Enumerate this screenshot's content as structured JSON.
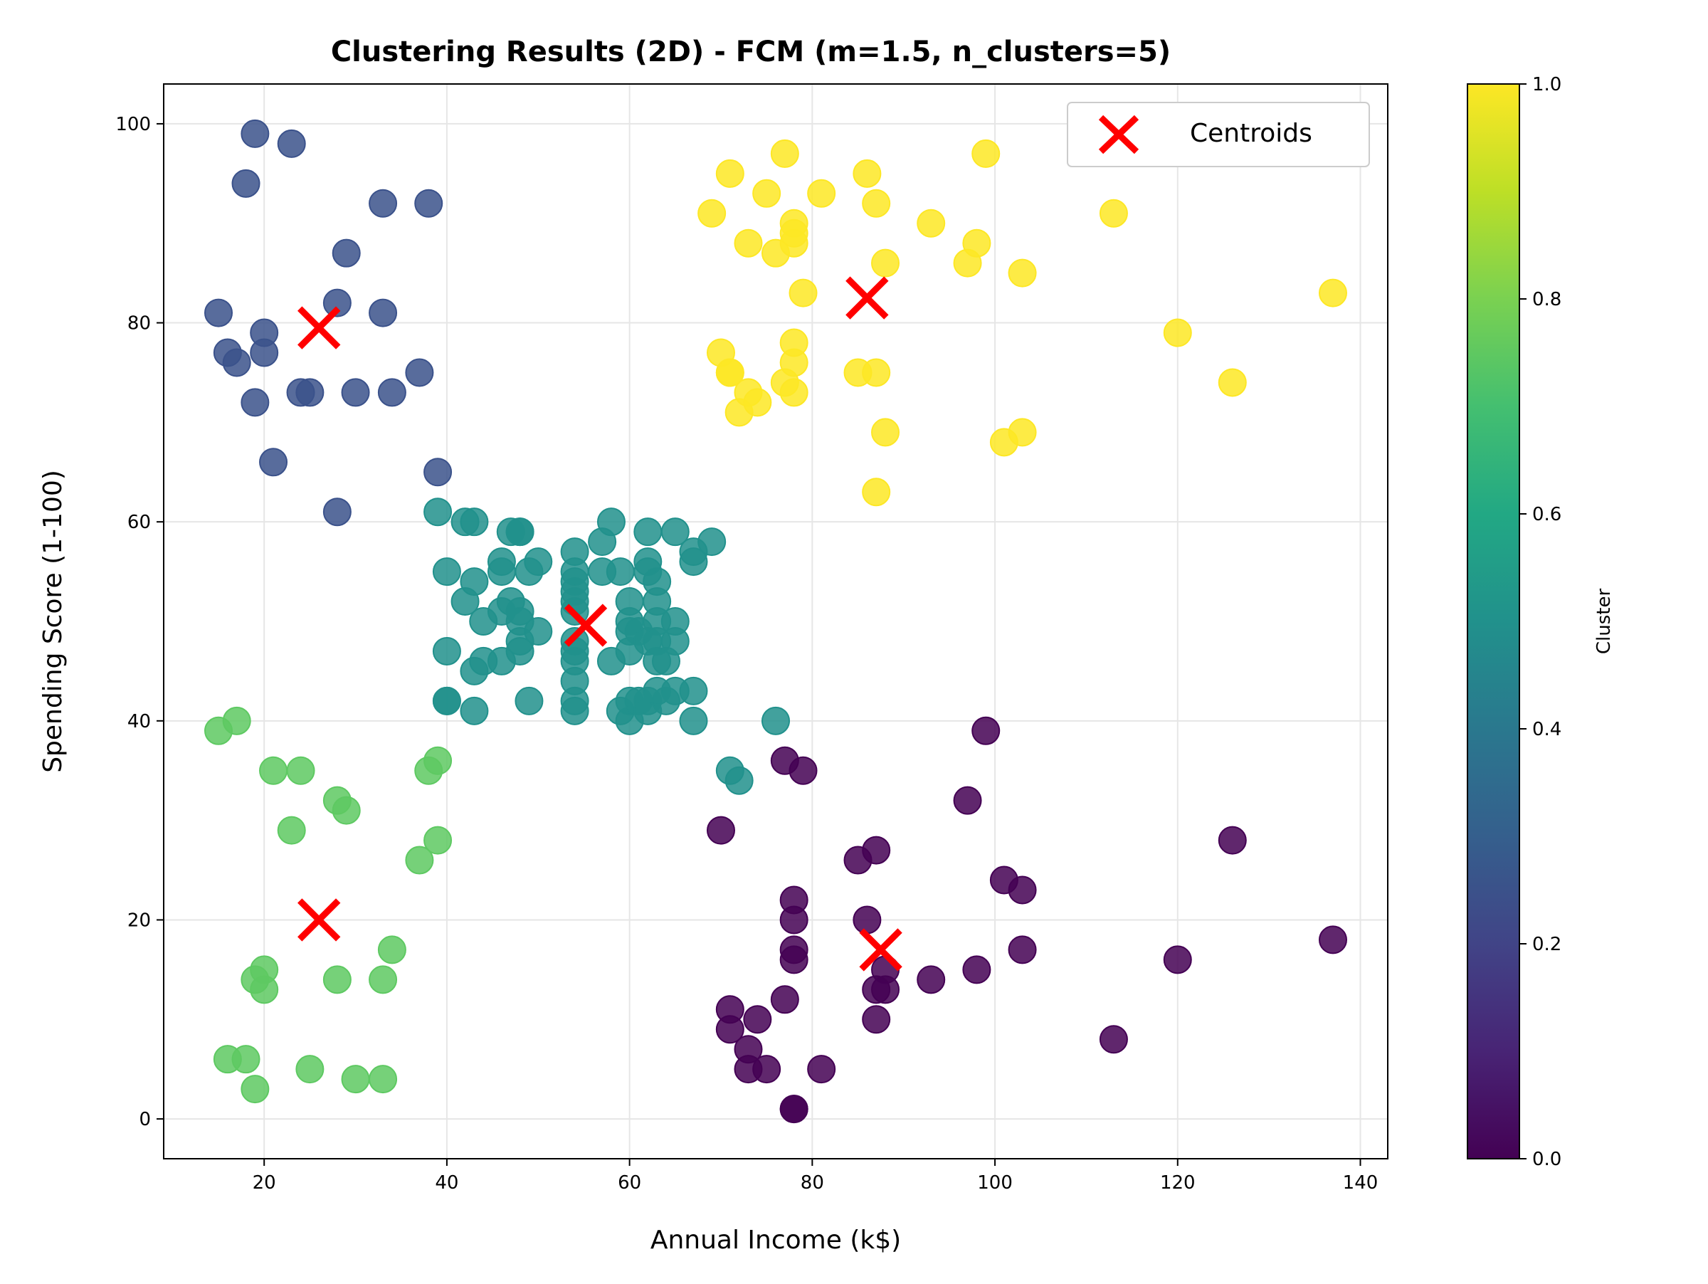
{
  "chart_data": {
    "type": "scatter",
    "title": "Clustering Results (2D) - FCM (m=1.5, n_clusters=5)",
    "xlabel": "Annual Income (k$)",
    "ylabel": "Spending Score (1-100)",
    "xlim": [
      9,
      143
    ],
    "ylim": [
      -4,
      104
    ],
    "xticks": [
      20,
      40,
      60,
      80,
      100,
      120,
      140
    ],
    "yticks": [
      0,
      20,
      40,
      60,
      80,
      100
    ],
    "grid": true,
    "legend": {
      "position": "top-right",
      "entries": [
        "Centroids"
      ]
    },
    "colorbar": {
      "label": "Cluster",
      "range": [
        0,
        1
      ],
      "ticks": [
        "0.0",
        "0.2",
        "0.4",
        "0.6",
        "0.8",
        "1.0"
      ],
      "colormap": "viridis"
    },
    "centroid_color": "#ff0000",
    "series": [
      {
        "cluster_value": 0.2,
        "color": "#3b528b",
        "points": [
          [
            15,
            81
          ],
          [
            16,
            77
          ],
          [
            17,
            76
          ],
          [
            18,
            94
          ],
          [
            19,
            72
          ],
          [
            19,
            99
          ],
          [
            20,
            77
          ],
          [
            20,
            79
          ],
          [
            21,
            66
          ],
          [
            23,
            98
          ],
          [
            24,
            73
          ],
          [
            25,
            73
          ],
          [
            28,
            61
          ],
          [
            28,
            82
          ],
          [
            29,
            87
          ],
          [
            30,
            73
          ],
          [
            33,
            81
          ],
          [
            33,
            92
          ],
          [
            34,
            73
          ],
          [
            37,
            75
          ],
          [
            38,
            92
          ],
          [
            39,
            65
          ]
        ]
      },
      {
        "cluster_value": 0.8,
        "color": "#5ec962",
        "points": [
          [
            15,
            39
          ],
          [
            16,
            6
          ],
          [
            17,
            40
          ],
          [
            18,
            6
          ],
          [
            19,
            3
          ],
          [
            19,
            14
          ],
          [
            20,
            13
          ],
          [
            20,
            15
          ],
          [
            21,
            35
          ],
          [
            23,
            29
          ],
          [
            24,
            35
          ],
          [
            25,
            5
          ],
          [
            28,
            14
          ],
          [
            28,
            32
          ],
          [
            29,
            31
          ],
          [
            30,
            4
          ],
          [
            33,
            4
          ],
          [
            33,
            14
          ],
          [
            34,
            17
          ],
          [
            37,
            26
          ],
          [
            38,
            35
          ],
          [
            39,
            36
          ],
          [
            39,
            28
          ]
        ]
      },
      {
        "cluster_value": 0.5,
        "color": "#21918c",
        "points": [
          [
            39,
            61
          ],
          [
            40,
            55
          ],
          [
            40,
            47
          ],
          [
            40,
            42
          ],
          [
            40,
            42
          ],
          [
            42,
            52
          ],
          [
            42,
            60
          ],
          [
            43,
            54
          ],
          [
            43,
            60
          ],
          [
            43,
            45
          ],
          [
            43,
            41
          ],
          [
            44,
            50
          ],
          [
            44,
            46
          ],
          [
            46,
            51
          ],
          [
            46,
            46
          ],
          [
            46,
            56
          ],
          [
            46,
            55
          ],
          [
            47,
            52
          ],
          [
            47,
            59
          ],
          [
            48,
            51
          ],
          [
            48,
            59
          ],
          [
            48,
            50
          ],
          [
            48,
            48
          ],
          [
            48,
            59
          ],
          [
            48,
            47
          ],
          [
            49,
            55
          ],
          [
            49,
            42
          ],
          [
            50,
            49
          ],
          [
            50,
            56
          ],
          [
            54,
            47
          ],
          [
            54,
            54
          ],
          [
            54,
            53
          ],
          [
            54,
            48
          ],
          [
            54,
            52
          ],
          [
            54,
            42
          ],
          [
            54,
            51
          ],
          [
            54,
            55
          ],
          [
            54,
            41
          ],
          [
            54,
            44
          ],
          [
            54,
            57
          ],
          [
            54,
            46
          ],
          [
            57,
            58
          ],
          [
            57,
            55
          ],
          [
            58,
            60
          ],
          [
            58,
            46
          ],
          [
            59,
            55
          ],
          [
            59,
            41
          ],
          [
            60,
            49
          ],
          [
            60,
            40
          ],
          [
            60,
            42
          ],
          [
            60,
            52
          ],
          [
            60,
            47
          ],
          [
            60,
            50
          ],
          [
            61,
            42
          ],
          [
            61,
            49
          ],
          [
            62,
            41
          ],
          [
            62,
            48
          ],
          [
            62,
            59
          ],
          [
            62,
            55
          ],
          [
            62,
            56
          ],
          [
            62,
            42
          ],
          [
            63,
            50
          ],
          [
            63,
            46
          ],
          [
            63,
            43
          ],
          [
            63,
            48
          ],
          [
            63,
            52
          ],
          [
            63,
            54
          ],
          [
            64,
            42
          ],
          [
            64,
            46
          ],
          [
            65,
            48
          ],
          [
            65,
            50
          ],
          [
            65,
            43
          ],
          [
            65,
            59
          ],
          [
            67,
            43
          ],
          [
            67,
            57
          ],
          [
            67,
            56
          ],
          [
            67,
            40
          ],
          [
            69,
            58
          ],
          [
            71,
            35
          ],
          [
            72,
            34
          ],
          [
            76,
            40
          ]
        ]
      },
      {
        "cluster_value": 1.0,
        "color": "#fde725",
        "points": [
          [
            69,
            91
          ],
          [
            70,
            77
          ],
          [
            71,
            95
          ],
          [
            71,
            75
          ],
          [
            71,
            75
          ],
          [
            72,
            71
          ],
          [
            73,
            88
          ],
          [
            73,
            73
          ],
          [
            74,
            72
          ],
          [
            75,
            93
          ],
          [
            76,
            87
          ],
          [
            77,
            97
          ],
          [
            77,
            74
          ],
          [
            78,
            90
          ],
          [
            78,
            88
          ],
          [
            78,
            76
          ],
          [
            78,
            89
          ],
          [
            78,
            78
          ],
          [
            78,
            73
          ],
          [
            79,
            83
          ],
          [
            81,
            93
          ],
          [
            85,
            75
          ],
          [
            86,
            95
          ],
          [
            87,
            63
          ],
          [
            87,
            75
          ],
          [
            87,
            92
          ],
          [
            88,
            86
          ],
          [
            88,
            69
          ],
          [
            93,
            90
          ],
          [
            97,
            86
          ],
          [
            98,
            88
          ],
          [
            99,
            97
          ],
          [
            101,
            68
          ],
          [
            103,
            85
          ],
          [
            103,
            69
          ],
          [
            113,
            91
          ],
          [
            120,
            79
          ],
          [
            126,
            74
          ],
          [
            137,
            83
          ]
        ]
      },
      {
        "cluster_value": 0.05,
        "color": "#440154",
        "points": [
          [
            70,
            29
          ],
          [
            71,
            11
          ],
          [
            71,
            9
          ],
          [
            73,
            5
          ],
          [
            73,
            7
          ],
          [
            74,
            10
          ],
          [
            75,
            5
          ],
          [
            77,
            12
          ],
          [
            77,
            36
          ],
          [
            78,
            22
          ],
          [
            78,
            17
          ],
          [
            78,
            20
          ],
          [
            78,
            16
          ],
          [
            78,
            1
          ],
          [
            78,
            1
          ],
          [
            79,
            35
          ],
          [
            81,
            5
          ],
          [
            85,
            26
          ],
          [
            86,
            20
          ],
          [
            87,
            27
          ],
          [
            87,
            13
          ],
          [
            87,
            10
          ],
          [
            88,
            13
          ],
          [
            88,
            15
          ],
          [
            93,
            14
          ],
          [
            97,
            32
          ],
          [
            98,
            15
          ],
          [
            99,
            39
          ],
          [
            101,
            24
          ],
          [
            103,
            17
          ],
          [
            103,
            23
          ],
          [
            113,
            8
          ],
          [
            120,
            16
          ],
          [
            126,
            28
          ],
          [
            137,
            18
          ]
        ]
      }
    ],
    "centroids": [
      [
        26,
        79.5
      ],
      [
        86,
        82.5
      ],
      [
        55.2,
        49.6
      ],
      [
        26,
        20
      ],
      [
        87.5,
        17
      ]
    ]
  }
}
